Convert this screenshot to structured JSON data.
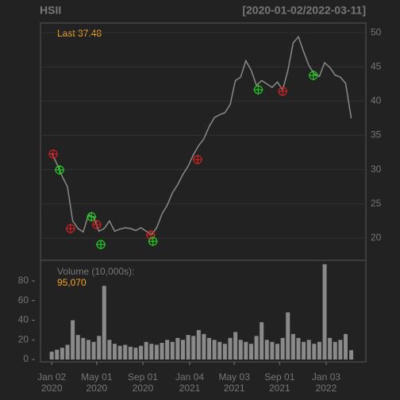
{
  "chart_data": [
    {
      "type": "line",
      "title": "HSII",
      "subtitle": "[2020-01-02/2022-03-11]",
      "last_label": "Last 37.48",
      "x": [
        "2020-01-02",
        "2020-01-16",
        "2020-01-30",
        "2020-02-13",
        "2020-02-27",
        "2020-03-12",
        "2020-03-26",
        "2020-04-09",
        "2020-04-23",
        "2020-05-07",
        "2020-05-21",
        "2020-06-04",
        "2020-06-18",
        "2020-07-02",
        "2020-07-16",
        "2020-07-30",
        "2020-08-13",
        "2020-08-27",
        "2020-09-10",
        "2020-09-24",
        "2020-10-08",
        "2020-10-22",
        "2020-11-05",
        "2020-11-19",
        "2020-12-03",
        "2020-12-17",
        "2020-12-31",
        "2021-01-14",
        "2021-01-28",
        "2021-02-11",
        "2021-02-25",
        "2021-03-11",
        "2021-03-25",
        "2021-04-08",
        "2021-04-22",
        "2021-05-06",
        "2021-05-20",
        "2021-06-03",
        "2021-06-17",
        "2021-07-01",
        "2021-07-15",
        "2021-07-29",
        "2021-08-12",
        "2021-08-26",
        "2021-09-09",
        "2021-09-23",
        "2021-10-07",
        "2021-10-21",
        "2021-11-04",
        "2021-11-18",
        "2021-12-02",
        "2021-12-16",
        "2021-12-30",
        "2022-01-13",
        "2022-01-27",
        "2022-02-10",
        "2022-02-24",
        "2022-03-11"
      ],
      "series": [
        {
          "color": "#8a8a8a",
          "values": [
            32.4,
            30.8,
            29.0,
            27.5,
            22.5,
            21.4,
            20.9,
            23.4,
            23.0,
            21.0,
            21.4,
            22.5,
            21.0,
            21.3,
            21.5,
            21.4,
            21.1,
            21.5,
            21.0,
            20.5,
            21.5,
            23.5,
            24.8,
            26.6,
            27.8,
            29.3,
            30.5,
            32.2,
            33.5,
            34.5,
            36.3,
            37.6,
            38.0,
            38.3,
            39.5,
            43.0,
            43.5,
            45.9,
            44.5,
            42.3,
            43.0,
            42.5,
            42.0,
            42.8,
            41.6,
            44.5,
            48.5,
            49.4,
            47.2,
            45.2,
            44.0,
            43.6,
            45.6,
            44.9,
            43.8,
            43.5,
            42.6,
            37.48
          ]
        }
      ],
      "signals": [
        {
          "x": "2020-01-06",
          "y": 32.27,
          "color": "#cc2222"
        },
        {
          "x": "2020-01-23",
          "y": 29.95,
          "color": "#22cc22"
        },
        {
          "x": "2020-02-21",
          "y": 21.38,
          "color": "#cc2222"
        },
        {
          "x": "2020-04-17",
          "y": 23.12,
          "color": "#22cc22"
        },
        {
          "x": "2020-05-01",
          "y": 21.96,
          "color": "#cc2222"
        },
        {
          "x": "2020-05-12",
          "y": 19.06,
          "color": "#22cc22"
        },
        {
          "x": "2020-09-22",
          "y": 20.45,
          "color": "#cc2222"
        },
        {
          "x": "2020-09-28",
          "y": 19.52,
          "color": "#22cc22"
        },
        {
          "x": "2021-01-25",
          "y": 31.46,
          "color": "#cc2222"
        },
        {
          "x": "2021-07-06",
          "y": 41.66,
          "color": "#22cc22"
        },
        {
          "x": "2021-09-09",
          "y": 41.43,
          "color": "#cc2222"
        },
        {
          "x": "2021-11-30",
          "y": 43.74,
          "color": "#22cc22"
        }
      ],
      "xlim": [
        "2019-12-03",
        "2022-04-19"
      ],
      "ylim": [
        16.75,
        51.4
      ],
      "yticks": [
        20,
        25,
        30,
        35,
        40,
        45,
        50
      ],
      "grid": true
    },
    {
      "type": "bar",
      "title": "Volume (10,000s):",
      "last_label": "95,070",
      "color": "#8a8a8a",
      "x": [
        "2020-01-02",
        "2020-01-16",
        "2020-01-30",
        "2020-02-13",
        "2020-02-27",
        "2020-03-12",
        "2020-03-26",
        "2020-04-09",
        "2020-04-23",
        "2020-05-07",
        "2020-05-21",
        "2020-06-04",
        "2020-06-18",
        "2020-07-02",
        "2020-07-16",
        "2020-07-30",
        "2020-08-13",
        "2020-08-27",
        "2020-09-10",
        "2020-09-24",
        "2020-10-08",
        "2020-10-22",
        "2020-11-05",
        "2020-11-19",
        "2020-12-03",
        "2020-12-17",
        "2020-12-31",
        "2021-01-14",
        "2021-01-28",
        "2021-02-11",
        "2021-02-25",
        "2021-03-11",
        "2021-03-25",
        "2021-04-08",
        "2021-04-22",
        "2021-05-06",
        "2021-05-20",
        "2021-06-03",
        "2021-06-17",
        "2021-07-01",
        "2021-07-15",
        "2021-07-29",
        "2021-08-12",
        "2021-08-26",
        "2021-09-09",
        "2021-09-23",
        "2021-10-07",
        "2021-10-21",
        "2021-11-04",
        "2021-11-18",
        "2021-12-02",
        "2021-12-16",
        "2021-12-30",
        "2022-01-13",
        "2022-01-27",
        "2022-02-10",
        "2022-02-24",
        "2022-03-11"
      ],
      "values": [
        8,
        10,
        12,
        15,
        40,
        25,
        22,
        20,
        18,
        24,
        75,
        20,
        16,
        14,
        15,
        13,
        12,
        14,
        18,
        16,
        15,
        17,
        20,
        18,
        22,
        20,
        25,
        24,
        30,
        26,
        22,
        20,
        18,
        16,
        22,
        28,
        20,
        18,
        16,
        24,
        38,
        20,
        18,
        16,
        22,
        48,
        26,
        22,
        18,
        20,
        16,
        18,
        97,
        22,
        18,
        20,
        26,
        9.507
      ],
      "xlim": [
        "2019-12-03",
        "2022-04-19"
      ],
      "ylim": [
        -2.4,
        101
      ],
      "yticks": [
        0,
        20,
        40,
        60,
        80
      ],
      "xticks": [
        {
          "value": "2020-01-02",
          "label": "Jan 02",
          "sublabel": "2020"
        },
        {
          "value": "2020-05-01",
          "label": "May 01",
          "sublabel": "2020"
        },
        {
          "value": "2020-09-01",
          "label": "Sep 01",
          "sublabel": "2020"
        },
        {
          "value": "2021-01-04",
          "label": "Jan 04",
          "sublabel": "2021"
        },
        {
          "value": "2021-05-03",
          "label": "May 03",
          "sublabel": "2021"
        },
        {
          "value": "2021-09-01",
          "label": "Sep 01",
          "sublabel": "2021"
        },
        {
          "value": "2022-01-03",
          "label": "Jan 03",
          "sublabel": "2022"
        }
      ]
    }
  ]
}
